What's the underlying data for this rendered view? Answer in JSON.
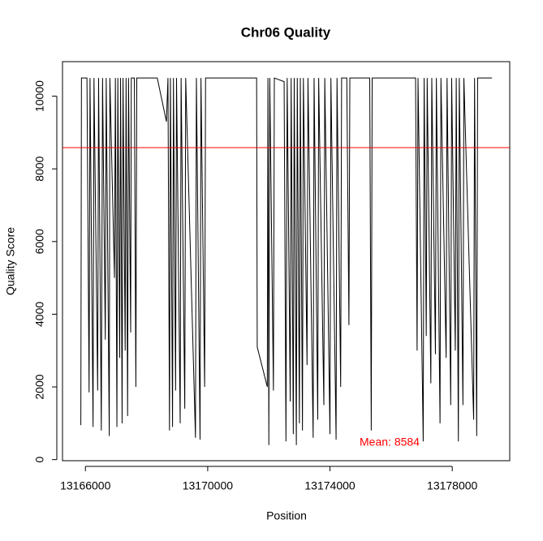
{
  "chart_data": {
    "type": "line",
    "title": "Chr06 Quality",
    "x_label": "Position",
    "y_label": "Quality Score",
    "xlim": [
      13165250,
      13179880
    ],
    "ylim": [
      -30,
      10950
    ],
    "xticks": [
      13166000,
      13170000,
      13174000,
      13178000
    ],
    "yticks": [
      0,
      2000,
      4000,
      6000,
      8000,
      10000
    ],
    "mean_line": 8584,
    "mean_label": "Mean: 8584",
    "mean_color": "#ff0000",
    "series": [
      {
        "color": "#000000",
        "x": [
          13165850,
          13165870,
          13166050,
          13166120,
          13166150,
          13166250,
          13166280,
          13166400,
          13166430,
          13166520,
          13166560,
          13166650,
          13166680,
          13166780,
          13166800,
          13166950,
          13166980,
          13167030,
          13167060,
          13167120,
          13167150,
          13167200,
          13167230,
          13167300,
          13167330,
          13167380,
          13167410,
          13167480,
          13167500,
          13167600,
          13167650,
          13167680,
          13168350,
          13168650,
          13168700,
          13168750,
          13168780,
          13168850,
          13168880,
          13168950,
          13168980,
          13169100,
          13169130,
          13169250,
          13169280,
          13169600,
          13169630,
          13169750,
          13169780,
          13169900,
          13169930,
          13170300,
          13171600,
          13171620,
          13171950,
          13171970,
          13172000,
          13172030,
          13172150,
          13172180,
          13172500,
          13172560,
          13172600,
          13172700,
          13172730,
          13172800,
          13172830,
          13172900,
          13172930,
          13173000,
          13173030,
          13173100,
          13173130,
          13173250,
          13173280,
          13173450,
          13173480,
          13173600,
          13173630,
          13173800,
          13173830,
          13174000,
          13174030,
          13174200,
          13174230,
          13174350,
          13174380,
          13174550,
          13174620,
          13174650,
          13175300,
          13175350,
          13175380,
          13176800,
          13176850,
          13176880,
          13177050,
          13177080,
          13177150,
          13177180,
          13177300,
          13177330,
          13177450,
          13177480,
          13177600,
          13177630,
          13177800,
          13177830,
          13177950,
          13177980,
          13178100,
          13178130,
          13178200,
          13178230,
          13178350,
          13178380,
          13178700,
          13178730,
          13178800,
          13178830,
          13179300
        ],
        "values": [
          950,
          10500,
          10500,
          1850,
          10500,
          900,
          10500,
          1900,
          10500,
          800,
          10500,
          3300,
          10500,
          650,
          10500,
          5000,
          10500,
          900,
          10500,
          2800,
          10500,
          1000,
          10500,
          3000,
          10500,
          1200,
          10500,
          3500,
          10500,
          10500,
          2000,
          10500,
          10500,
          9300,
          10500,
          800,
          10500,
          900,
          10500,
          1900,
          10500,
          1000,
          10500,
          1400,
          10500,
          600,
          10500,
          550,
          10500,
          2000,
          10500,
          10500,
          10500,
          3100,
          2000,
          10500,
          400,
          10500,
          1900,
          10500,
          10400,
          500,
          10500,
          1600,
          10500,
          700,
          10500,
          400,
          10500,
          1000,
          10500,
          800,
          10500,
          2600,
          10500,
          600,
          10500,
          1100,
          10500,
          1500,
          10500,
          700,
          10500,
          550,
          10500,
          2000,
          10500,
          10500,
          3700,
          10500,
          10500,
          800,
          10500,
          10500,
          3000,
          10500,
          500,
          10500,
          3400,
          10500,
          2100,
          10500,
          2900,
          10500,
          1000,
          10500,
          2800,
          10500,
          1500,
          10500,
          3000,
          10500,
          500,
          10500,
          1500,
          10500,
          1100,
          10500,
          650,
          10500,
          10500
        ]
      }
    ]
  }
}
